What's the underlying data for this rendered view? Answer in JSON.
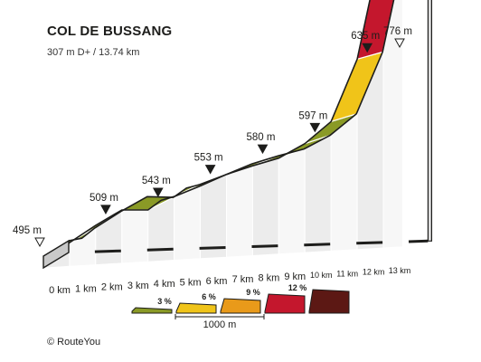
{
  "chart_data": {
    "type": "area",
    "title": "COL DE BUSSANG",
    "subtitle": "307 m D+ / 13.74 km",
    "x_unit": "km",
    "xlabel": "",
    "ylabel": "",
    "x_ticks": [
      0,
      1,
      2,
      3,
      4,
      5,
      6,
      7,
      8,
      9,
      10,
      11,
      12,
      13
    ],
    "profile": [
      {
        "km": 0,
        "elevation_m": 495
      },
      {
        "km": 0.5,
        "elevation_m": 498
      },
      {
        "km": 1,
        "elevation_m": 509
      },
      {
        "km": 2,
        "elevation_m": 527
      },
      {
        "km": 3,
        "elevation_m": 543
      },
      {
        "km": 4,
        "elevation_m": 543
      },
      {
        "km": 4.5,
        "elevation_m": 553
      },
      {
        "km": 5,
        "elevation_m": 557
      },
      {
        "km": 6,
        "elevation_m": 568
      },
      {
        "km": 7,
        "elevation_m": 580
      },
      {
        "km": 8,
        "elevation_m": 589
      },
      {
        "km": 9,
        "elevation_m": 597
      },
      {
        "km": 10,
        "elevation_m": 612
      },
      {
        "km": 11,
        "elevation_m": 635
      },
      {
        "km": 12,
        "elevation_m": 700
      },
      {
        "km": 12.6,
        "elevation_m": 776
      },
      {
        "km": 13.74,
        "elevation_m": 776
      }
    ],
    "segment_grades_percent": [
      1,
      2,
      2,
      0,
      2,
      2,
      1,
      1,
      1,
      2,
      3,
      7,
      12,
      0
    ],
    "elevation_markers": [
      {
        "km": 0,
        "label": "495 m"
      },
      {
        "km": 1.9,
        "label": "509 m"
      },
      {
        "km": 3.9,
        "label": "543 m"
      },
      {
        "km": 5.9,
        "label": "553 m"
      },
      {
        "km": 7.9,
        "label": "580 m"
      },
      {
        "km": 9.9,
        "label": "597 m"
      },
      {
        "km": 11.9,
        "label": "635 m"
      },
      {
        "km": 13.6,
        "label": "776 m"
      }
    ],
    "legend": {
      "grades": [
        {
          "label": "3 %",
          "color": "#8a9a26"
        },
        {
          "label": "6 %",
          "color": "#f0c419"
        },
        {
          "label": "9 %",
          "color": "#e99a1a"
        },
        {
          "label": "12 %",
          "color": "#c4172d"
        },
        {
          "label": "",
          "color": "#5c1814"
        }
      ],
      "scale_label": "1000 m"
    }
  },
  "copyright": "© RouteYou"
}
